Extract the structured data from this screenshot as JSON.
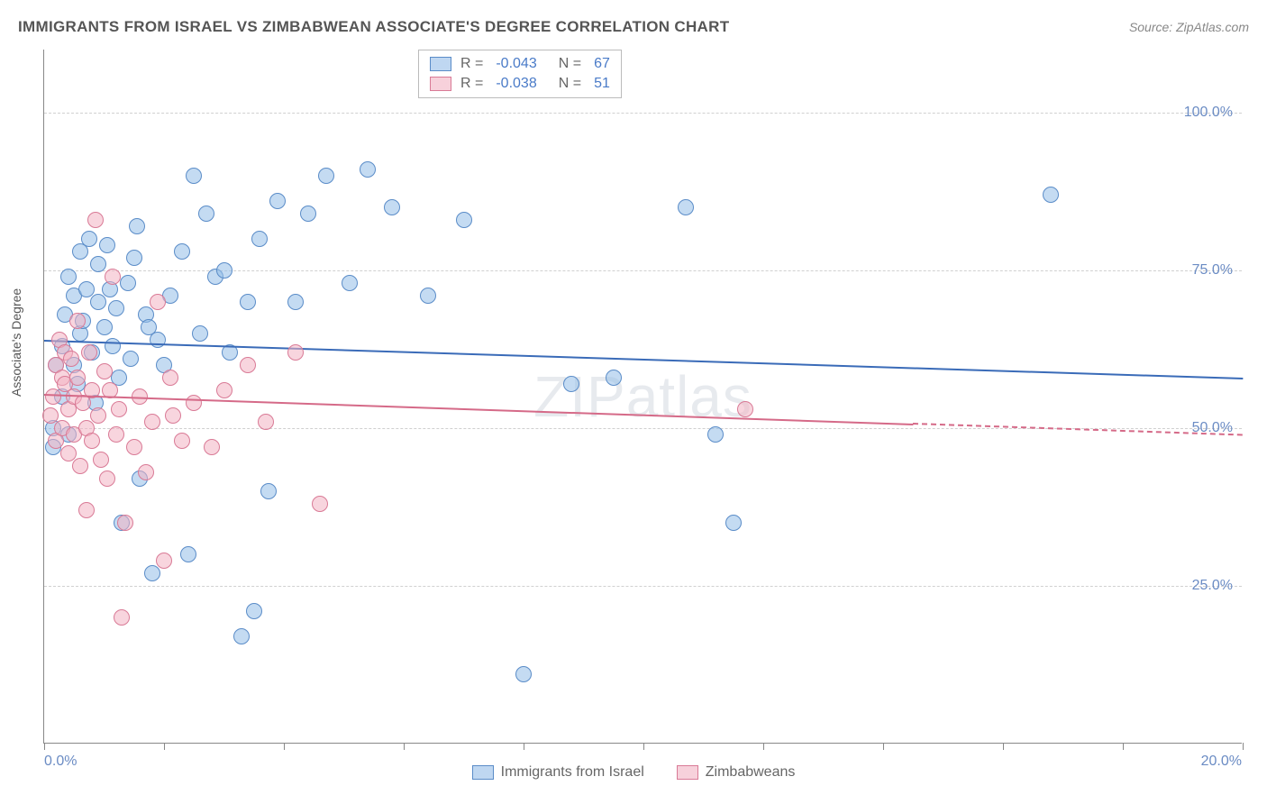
{
  "title": "IMMIGRANTS FROM ISRAEL VS ZIMBABWEAN ASSOCIATE'S DEGREE CORRELATION CHART",
  "source": "Source: ZipAtlas.com",
  "watermark": "ZIPatlas",
  "chart": {
    "type": "scatter",
    "ylabel": "Associate's Degree",
    "xlim": [
      0,
      20
    ],
    "ylim": [
      0,
      110
    ],
    "y_ticks": [
      25,
      50,
      75,
      100
    ],
    "y_tick_labels": [
      "25.0%",
      "50.0%",
      "75.0%",
      "100.0%"
    ],
    "x_ticks": [
      0,
      2,
      4,
      6,
      8,
      10,
      12,
      14,
      16,
      18,
      20
    ],
    "x_labels": {
      "min": "0.0%",
      "max": "20.0%"
    },
    "grid_color": "#d0d0d0",
    "axis_color": "#888888",
    "background_color": "#ffffff",
    "marker_size": 18,
    "series": [
      {
        "name": "Immigrants from Israel",
        "color_fill": "rgba(148,189,231,0.55)",
        "color_stroke": "#5a8cc8",
        "trend_color": "#3a6bb8",
        "R": "-0.043",
        "N": "67",
        "trend": {
          "x0": 0,
          "y0": 64,
          "x1": 20,
          "y1": 58,
          "x_data_max": 20
        },
        "points": [
          [
            0.15,
            47
          ],
          [
            0.15,
            50
          ],
          [
            0.2,
            60
          ],
          [
            0.3,
            63
          ],
          [
            0.3,
            55
          ],
          [
            0.35,
            68
          ],
          [
            0.4,
            49
          ],
          [
            0.4,
            74
          ],
          [
            0.5,
            71
          ],
          [
            0.5,
            60
          ],
          [
            0.55,
            57
          ],
          [
            0.6,
            78
          ],
          [
            0.6,
            65
          ],
          [
            0.65,
            67
          ],
          [
            0.7,
            72
          ],
          [
            0.75,
            80
          ],
          [
            0.8,
            62
          ],
          [
            0.85,
            54
          ],
          [
            0.9,
            70
          ],
          [
            0.9,
            76
          ],
          [
            1.0,
            66
          ],
          [
            1.05,
            79
          ],
          [
            1.1,
            72
          ],
          [
            1.15,
            63
          ],
          [
            1.2,
            69
          ],
          [
            1.25,
            58
          ],
          [
            1.3,
            35
          ],
          [
            1.4,
            73
          ],
          [
            1.45,
            61
          ],
          [
            1.5,
            77
          ],
          [
            1.55,
            82
          ],
          [
            1.6,
            42
          ],
          [
            1.7,
            68
          ],
          [
            1.75,
            66
          ],
          [
            1.8,
            27
          ],
          [
            1.9,
            64
          ],
          [
            2.0,
            60
          ],
          [
            2.1,
            71
          ],
          [
            2.3,
            78
          ],
          [
            2.4,
            30
          ],
          [
            2.5,
            90
          ],
          [
            2.6,
            65
          ],
          [
            2.7,
            84
          ],
          [
            2.85,
            74
          ],
          [
            3.0,
            75
          ],
          [
            3.1,
            62
          ],
          [
            3.3,
            17
          ],
          [
            3.4,
            70
          ],
          [
            3.5,
            21
          ],
          [
            3.6,
            80
          ],
          [
            3.75,
            40
          ],
          [
            3.9,
            86
          ],
          [
            4.2,
            70
          ],
          [
            4.4,
            84
          ],
          [
            4.7,
            90
          ],
          [
            5.1,
            73
          ],
          [
            5.4,
            91
          ],
          [
            5.8,
            85
          ],
          [
            6.4,
            71
          ],
          [
            7.0,
            83
          ],
          [
            8.0,
            11
          ],
          [
            8.8,
            57
          ],
          [
            9.5,
            58
          ],
          [
            10.7,
            85
          ],
          [
            11.2,
            49
          ],
          [
            11.5,
            35
          ],
          [
            16.8,
            87
          ]
        ]
      },
      {
        "name": "Zimbabweans",
        "color_fill": "rgba(242,178,195,0.55)",
        "color_stroke": "#d97a96",
        "trend_color": "#d56a88",
        "R": "-0.038",
        "N": "51",
        "trend": {
          "x0": 0,
          "y0": 55.5,
          "x1": 20,
          "y1": 49,
          "x_data_max": 14.5
        },
        "points": [
          [
            0.1,
            52
          ],
          [
            0.15,
            55
          ],
          [
            0.2,
            60
          ],
          [
            0.2,
            48
          ],
          [
            0.25,
            64
          ],
          [
            0.3,
            58
          ],
          [
            0.3,
            50
          ],
          [
            0.35,
            57
          ],
          [
            0.35,
            62
          ],
          [
            0.4,
            53
          ],
          [
            0.4,
            46
          ],
          [
            0.45,
            61
          ],
          [
            0.5,
            55
          ],
          [
            0.5,
            49
          ],
          [
            0.55,
            58
          ],
          [
            0.55,
            67
          ],
          [
            0.6,
            44
          ],
          [
            0.65,
            54
          ],
          [
            0.7,
            50
          ],
          [
            0.7,
            37
          ],
          [
            0.75,
            62
          ],
          [
            0.8,
            56
          ],
          [
            0.8,
            48
          ],
          [
            0.85,
            83
          ],
          [
            0.9,
            52
          ],
          [
            0.95,
            45
          ],
          [
            1.0,
            59
          ],
          [
            1.05,
            42
          ],
          [
            1.1,
            56
          ],
          [
            1.15,
            74
          ],
          [
            1.2,
            49
          ],
          [
            1.25,
            53
          ],
          [
            1.3,
            20
          ],
          [
            1.35,
            35
          ],
          [
            1.5,
            47
          ],
          [
            1.6,
            55
          ],
          [
            1.7,
            43
          ],
          [
            1.8,
            51
          ],
          [
            1.9,
            70
          ],
          [
            2.0,
            29
          ],
          [
            2.1,
            58
          ],
          [
            2.15,
            52
          ],
          [
            2.3,
            48
          ],
          [
            2.5,
            54
          ],
          [
            2.8,
            47
          ],
          [
            3.0,
            56
          ],
          [
            3.4,
            60
          ],
          [
            3.7,
            51
          ],
          [
            4.2,
            62
          ],
          [
            4.6,
            38
          ],
          [
            11.7,
            53
          ]
        ]
      }
    ],
    "bottom_legend": [
      {
        "label": "Immigrants from Israel",
        "class": "blue"
      },
      {
        "label": "Zimbabweans",
        "class": "pink"
      }
    ]
  }
}
